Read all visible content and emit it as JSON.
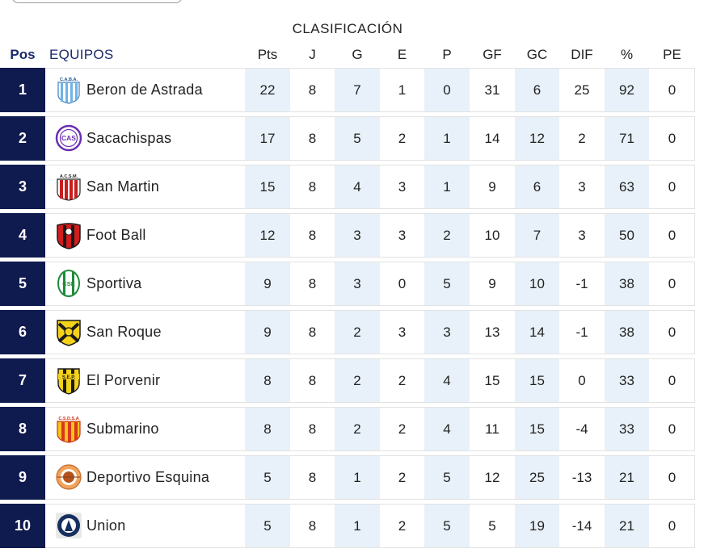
{
  "title": "CLASIFICACIÓN",
  "columns": {
    "pos": "Pos",
    "team": "EQUIPOS",
    "stats": [
      "Pts",
      "J",
      "G",
      "E",
      "P",
      "GF",
      "GC",
      "DIF",
      "%",
      "PE"
    ]
  },
  "rows": [
    {
      "pos": "1",
      "team": "Beron de Astrada",
      "logo_icon": "beron-de-astrada-crest-icon",
      "stats": [
        "22",
        "8",
        "7",
        "1",
        "0",
        "31",
        "6",
        "25",
        "92",
        "0"
      ]
    },
    {
      "pos": "2",
      "team": "Sacachispas",
      "logo_icon": "sacachispas-crest-icon",
      "stats": [
        "17",
        "8",
        "5",
        "2",
        "1",
        "14",
        "12",
        "2",
        "71",
        "0"
      ]
    },
    {
      "pos": "3",
      "team": "San Martin",
      "logo_icon": "san-martin-crest-icon",
      "stats": [
        "15",
        "8",
        "4",
        "3",
        "1",
        "9",
        "6",
        "3",
        "63",
        "0"
      ]
    },
    {
      "pos": "4",
      "team": "Foot Ball",
      "logo_icon": "foot-ball-crest-icon",
      "stats": [
        "12",
        "8",
        "3",
        "3",
        "2",
        "10",
        "7",
        "3",
        "50",
        "0"
      ]
    },
    {
      "pos": "5",
      "team": "Sportiva",
      "logo_icon": "sportiva-crest-icon",
      "stats": [
        "9",
        "8",
        "3",
        "0",
        "5",
        "9",
        "10",
        "-1",
        "38",
        "0"
      ]
    },
    {
      "pos": "6",
      "team": "San Roque",
      "logo_icon": "san-roque-crest-icon",
      "stats": [
        "9",
        "8",
        "2",
        "3",
        "3",
        "13",
        "14",
        "-1",
        "38",
        "0"
      ]
    },
    {
      "pos": "7",
      "team": "El Porvenir",
      "logo_icon": "el-porvenir-crest-icon",
      "stats": [
        "8",
        "8",
        "2",
        "2",
        "4",
        "15",
        "15",
        "0",
        "33",
        "0"
      ]
    },
    {
      "pos": "8",
      "team": "Submarino",
      "logo_icon": "submarino-crest-icon",
      "stats": [
        "8",
        "8",
        "2",
        "2",
        "4",
        "11",
        "15",
        "-4",
        "33",
        "0"
      ]
    },
    {
      "pos": "9",
      "team": "Deportivo Esquina",
      "logo_icon": "deportivo-esquina-crest-icon",
      "stats": [
        "5",
        "8",
        "1",
        "2",
        "5",
        "12",
        "25",
        "-13",
        "21",
        "0"
      ]
    },
    {
      "pos": "10",
      "team": "Union",
      "logo_icon": "union-crest-icon",
      "stats": [
        "5",
        "8",
        "1",
        "2",
        "5",
        "5",
        "19",
        "-14",
        "21",
        "0"
      ]
    }
  ],
  "logo_text": {
    "beron": "C.A.B.A.",
    "sacachispas": "CAS",
    "sanmartin": "A.C.S.M.",
    "sportiva": "CSE",
    "porvenir": "S.E.P.",
    "submarino": "C.S.D.S.A"
  },
  "colors": {
    "pos_background": "#0f1a4e",
    "header_accent": "#1a2a6c",
    "shaded_column": "#e8f1f9",
    "card_border": "#e2e2e2"
  }
}
